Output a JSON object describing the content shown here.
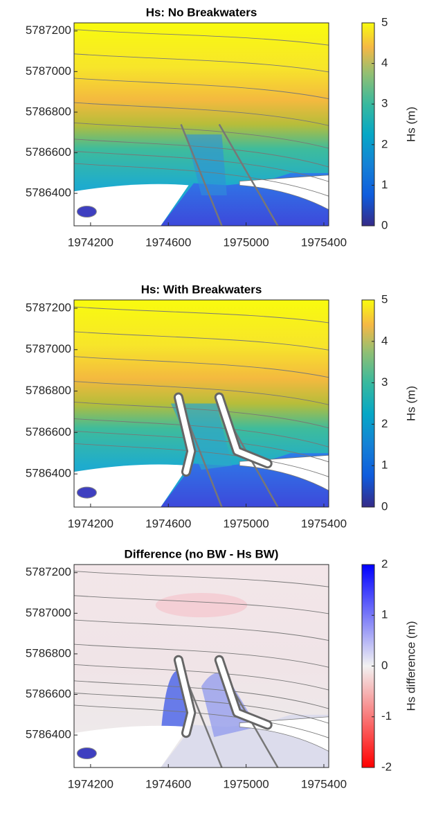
{
  "chart_data": [
    {
      "type": "heatmap",
      "title": "Hs: No Breakwaters",
      "xlim": [
        1974115,
        1975425
      ],
      "ylim": [
        5786240,
        5787240
      ],
      "xticks": [
        1974200,
        1974600,
        1975000,
        1975400
      ],
      "yticks": [
        5786400,
        5786600,
        5786800,
        5787000,
        5787200
      ],
      "colorbar": {
        "label": "Hs (m)",
        "lim": [
          0,
          5
        ],
        "ticks": [
          0,
          1,
          2,
          3,
          4,
          5
        ],
        "colormap": "parula"
      },
      "breakwaters": false
    },
    {
      "type": "heatmap",
      "title": "Hs: With Breakwaters",
      "xlim": [
        1974115,
        1975425
      ],
      "ylim": [
        5786240,
        5787240
      ],
      "xticks": [
        1974200,
        1974600,
        1975000,
        1975400
      ],
      "yticks": [
        5786400,
        5786600,
        5786800,
        5787000,
        5787200
      ],
      "colorbar": {
        "label": "Hs (m)",
        "lim": [
          0,
          5
        ],
        "ticks": [
          0,
          1,
          2,
          3,
          4,
          5
        ],
        "colormap": "parula"
      },
      "breakwaters": true
    },
    {
      "type": "heatmap",
      "title": "Difference (no BW - Hs BW)",
      "xlim": [
        1974115,
        1975425
      ],
      "ylim": [
        5786240,
        5787240
      ],
      "xticks": [
        1974200,
        1974600,
        1975000,
        1975400
      ],
      "yticks": [
        5786400,
        5786600,
        5786800,
        5787000,
        5787200
      ],
      "colorbar": {
        "label": "Hs difference (m)",
        "lim": [
          -2,
          2
        ],
        "ticks": [
          -2,
          -1,
          0,
          1,
          2
        ],
        "colormap": "diverging"
      },
      "breakwaters": true
    }
  ]
}
